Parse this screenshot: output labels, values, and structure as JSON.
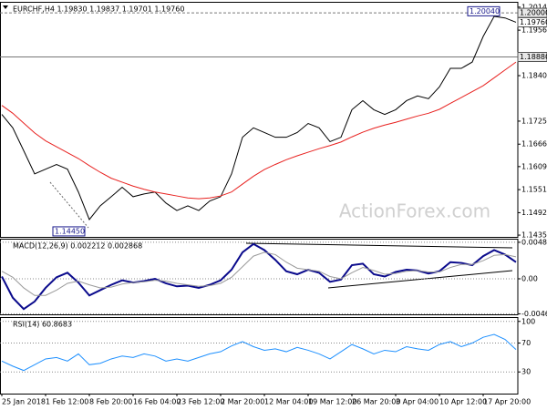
{
  "chart_data": [
    {
      "type": "line",
      "title": "EURCHF,H4  1.19830 1.19837 1.19701 1.19760",
      "watermark": "ActionForex.com",
      "ylim": [
        1.1431,
        1.2028
      ],
      "yticks": [
        1.20145,
        {
          "value": 1.1956,
          "label": "1.19560"
        },
        1.18405,
        {
          "value": 1.1725,
          "label": "1.17250"
        },
        1.16665,
        1.16095,
        {
          "value": 1.1551,
          "label": "1.15510"
        },
        1.14925,
        1.14355
      ],
      "grid": false,
      "price_lines": [
        {
          "value": 1.2,
          "label": "1.20000"
        },
        {
          "value": 1.1976,
          "label": "1.19760"
        },
        {
          "value": 1.1888,
          "label": "1.18880"
        }
      ],
      "annotations": [
        {
          "value": 1.2004,
          "label": "1.20040"
        },
        {
          "value": 1.1445,
          "label": "1.14450"
        }
      ],
      "series": [
        {
          "color": "#000000",
          "values": [
            1.1742,
            1.1708,
            1.165,
            1.1591,
            1.1603,
            1.1615,
            1.1603,
            1.1545,
            1.1475,
            1.151,
            1.1533,
            1.1557,
            1.1533,
            1.154,
            1.1545,
            1.1517,
            1.1498,
            1.151,
            1.1498,
            1.1522,
            1.1533,
            1.1591,
            1.1684,
            1.1708,
            1.1696,
            1.1684,
            1.1684,
            1.1696,
            1.1719,
            1.1708,
            1.1673,
            1.1684,
            1.1754,
            1.1777,
            1.1754,
            1.1742,
            1.1754,
            1.1777,
            1.1789,
            1.1782,
            1.1812,
            1.1859,
            1.1859,
            1.1875,
            1.194,
            1.1991,
            1.1987,
            1.1976
          ]
        },
        {
          "color": "#e8211f",
          "values": [
            1.1765,
            1.1745,
            1.172,
            1.1695,
            1.1675,
            1.166,
            1.1645,
            1.163,
            1.1612,
            1.1595,
            1.158,
            1.157,
            1.156,
            1.1552,
            1.1545,
            1.154,
            1.1535,
            1.153,
            1.1528,
            1.153,
            1.1535,
            1.1545,
            1.1565,
            1.1585,
            1.1602,
            1.1615,
            1.1627,
            1.1637,
            1.1646,
            1.1655,
            1.1663,
            1.1672,
            1.1685,
            1.1697,
            1.1707,
            1.1715,
            1.1722,
            1.173,
            1.1738,
            1.1745,
            1.1755,
            1.177,
            1.1785,
            1.18,
            1.1815,
            1.1835,
            1.1855,
            1.1875
          ]
        }
      ]
    },
    {
      "type": "line",
      "title": "MACD(12,26,9) 0.002212 0.002868",
      "ylim": [
        -0.0047,
        0.0053
      ],
      "yticks": [
        0.004827,
        {
          "value": 0,
          "label": "0.00"
        },
        -0.004632
      ],
      "grid": true,
      "series": [
        {
          "color": "#0a0a8c",
          "values": [
            0.0003,
            -0.0025,
            -0.004,
            -0.003,
            -0.0012,
            0.0002,
            0.0008,
            -0.0005,
            -0.0022,
            -0.0015,
            -0.0008,
            -0.0002,
            -0.0005,
            -0.0003,
            0,
            -0.0006,
            -0.001,
            -0.0009,
            -0.0012,
            -0.0008,
            -0.0002,
            0.0012,
            0.0035,
            0.0046,
            0.0038,
            0.0025,
            0.001,
            0.0006,
            0.0012,
            0.0008,
            -0.0004,
            -0.0001,
            0.0018,
            0.002,
            0.0006,
            0.0003,
            0.0009,
            0.0012,
            0.0011,
            0.0007,
            0.001,
            0.0022,
            0.0021,
            0.0018,
            0.003,
            0.0038,
            0.0032,
            0.0022
          ]
        },
        {
          "color": "#9a9a9a",
          "values": [
            0.001,
            0.0002,
            -0.0012,
            -0.0022,
            -0.0022,
            -0.0015,
            -0.0006,
            -0.0003,
            -0.0008,
            -0.0012,
            -0.0011,
            -0.0007,
            -0.0005,
            -0.0004,
            -0.0002,
            -0.0003,
            -0.0006,
            -0.0008,
            -0.001,
            -0.0009,
            -0.0006,
            0.0002,
            0.0016,
            0.003,
            0.0035,
            0.0032,
            0.0022,
            0.0014,
            0.0012,
            0.001,
            0.0003,
            0,
            0.0008,
            0.0015,
            0.0011,
            0.0006,
            0.0007,
            0.001,
            0.0011,
            0.0009,
            0.0009,
            0.0015,
            0.0019,
            0.0019,
            0.0024,
            0.0031,
            0.0032,
            0.0029
          ]
        }
      ]
    },
    {
      "type": "line",
      "title": "RSI(14) 60.8683",
      "ylim": [
        0,
        106
      ],
      "yticks": [
        100,
        70,
        30
      ],
      "grid": true,
      "categories": [
        "25 Jan 2018",
        null,
        null,
        null,
        "1 Feb 12:00",
        null,
        null,
        null,
        "8 Feb 20:00",
        null,
        null,
        null,
        "16 Feb 04:00",
        null,
        null,
        null,
        "23 Feb 12:00",
        null,
        null,
        null,
        "2 Mar 20:00",
        null,
        null,
        null,
        "12 Mar 04:00",
        null,
        null,
        null,
        "19 Mar 12:00",
        null,
        null,
        null,
        "26 Mar 20:00",
        null,
        null,
        null,
        "3 Apr 04:00",
        null,
        null,
        null,
        "10 Apr 12:00",
        null,
        null,
        null,
        "17 Apr 20:00",
        null,
        null,
        null
      ],
      "series": [
        {
          "color": "#1e90ff",
          "values": [
            45,
            38,
            32,
            40,
            48,
            50,
            45,
            55,
            40,
            42,
            48,
            52,
            50,
            55,
            52,
            45,
            48,
            45,
            50,
            55,
            58,
            66,
            72,
            65,
            60,
            62,
            58,
            64,
            60,
            55,
            48,
            58,
            68,
            62,
            55,
            60,
            58,
            65,
            62,
            60,
            68,
            72,
            65,
            70,
            78,
            82,
            75,
            61
          ]
        }
      ]
    }
  ]
}
